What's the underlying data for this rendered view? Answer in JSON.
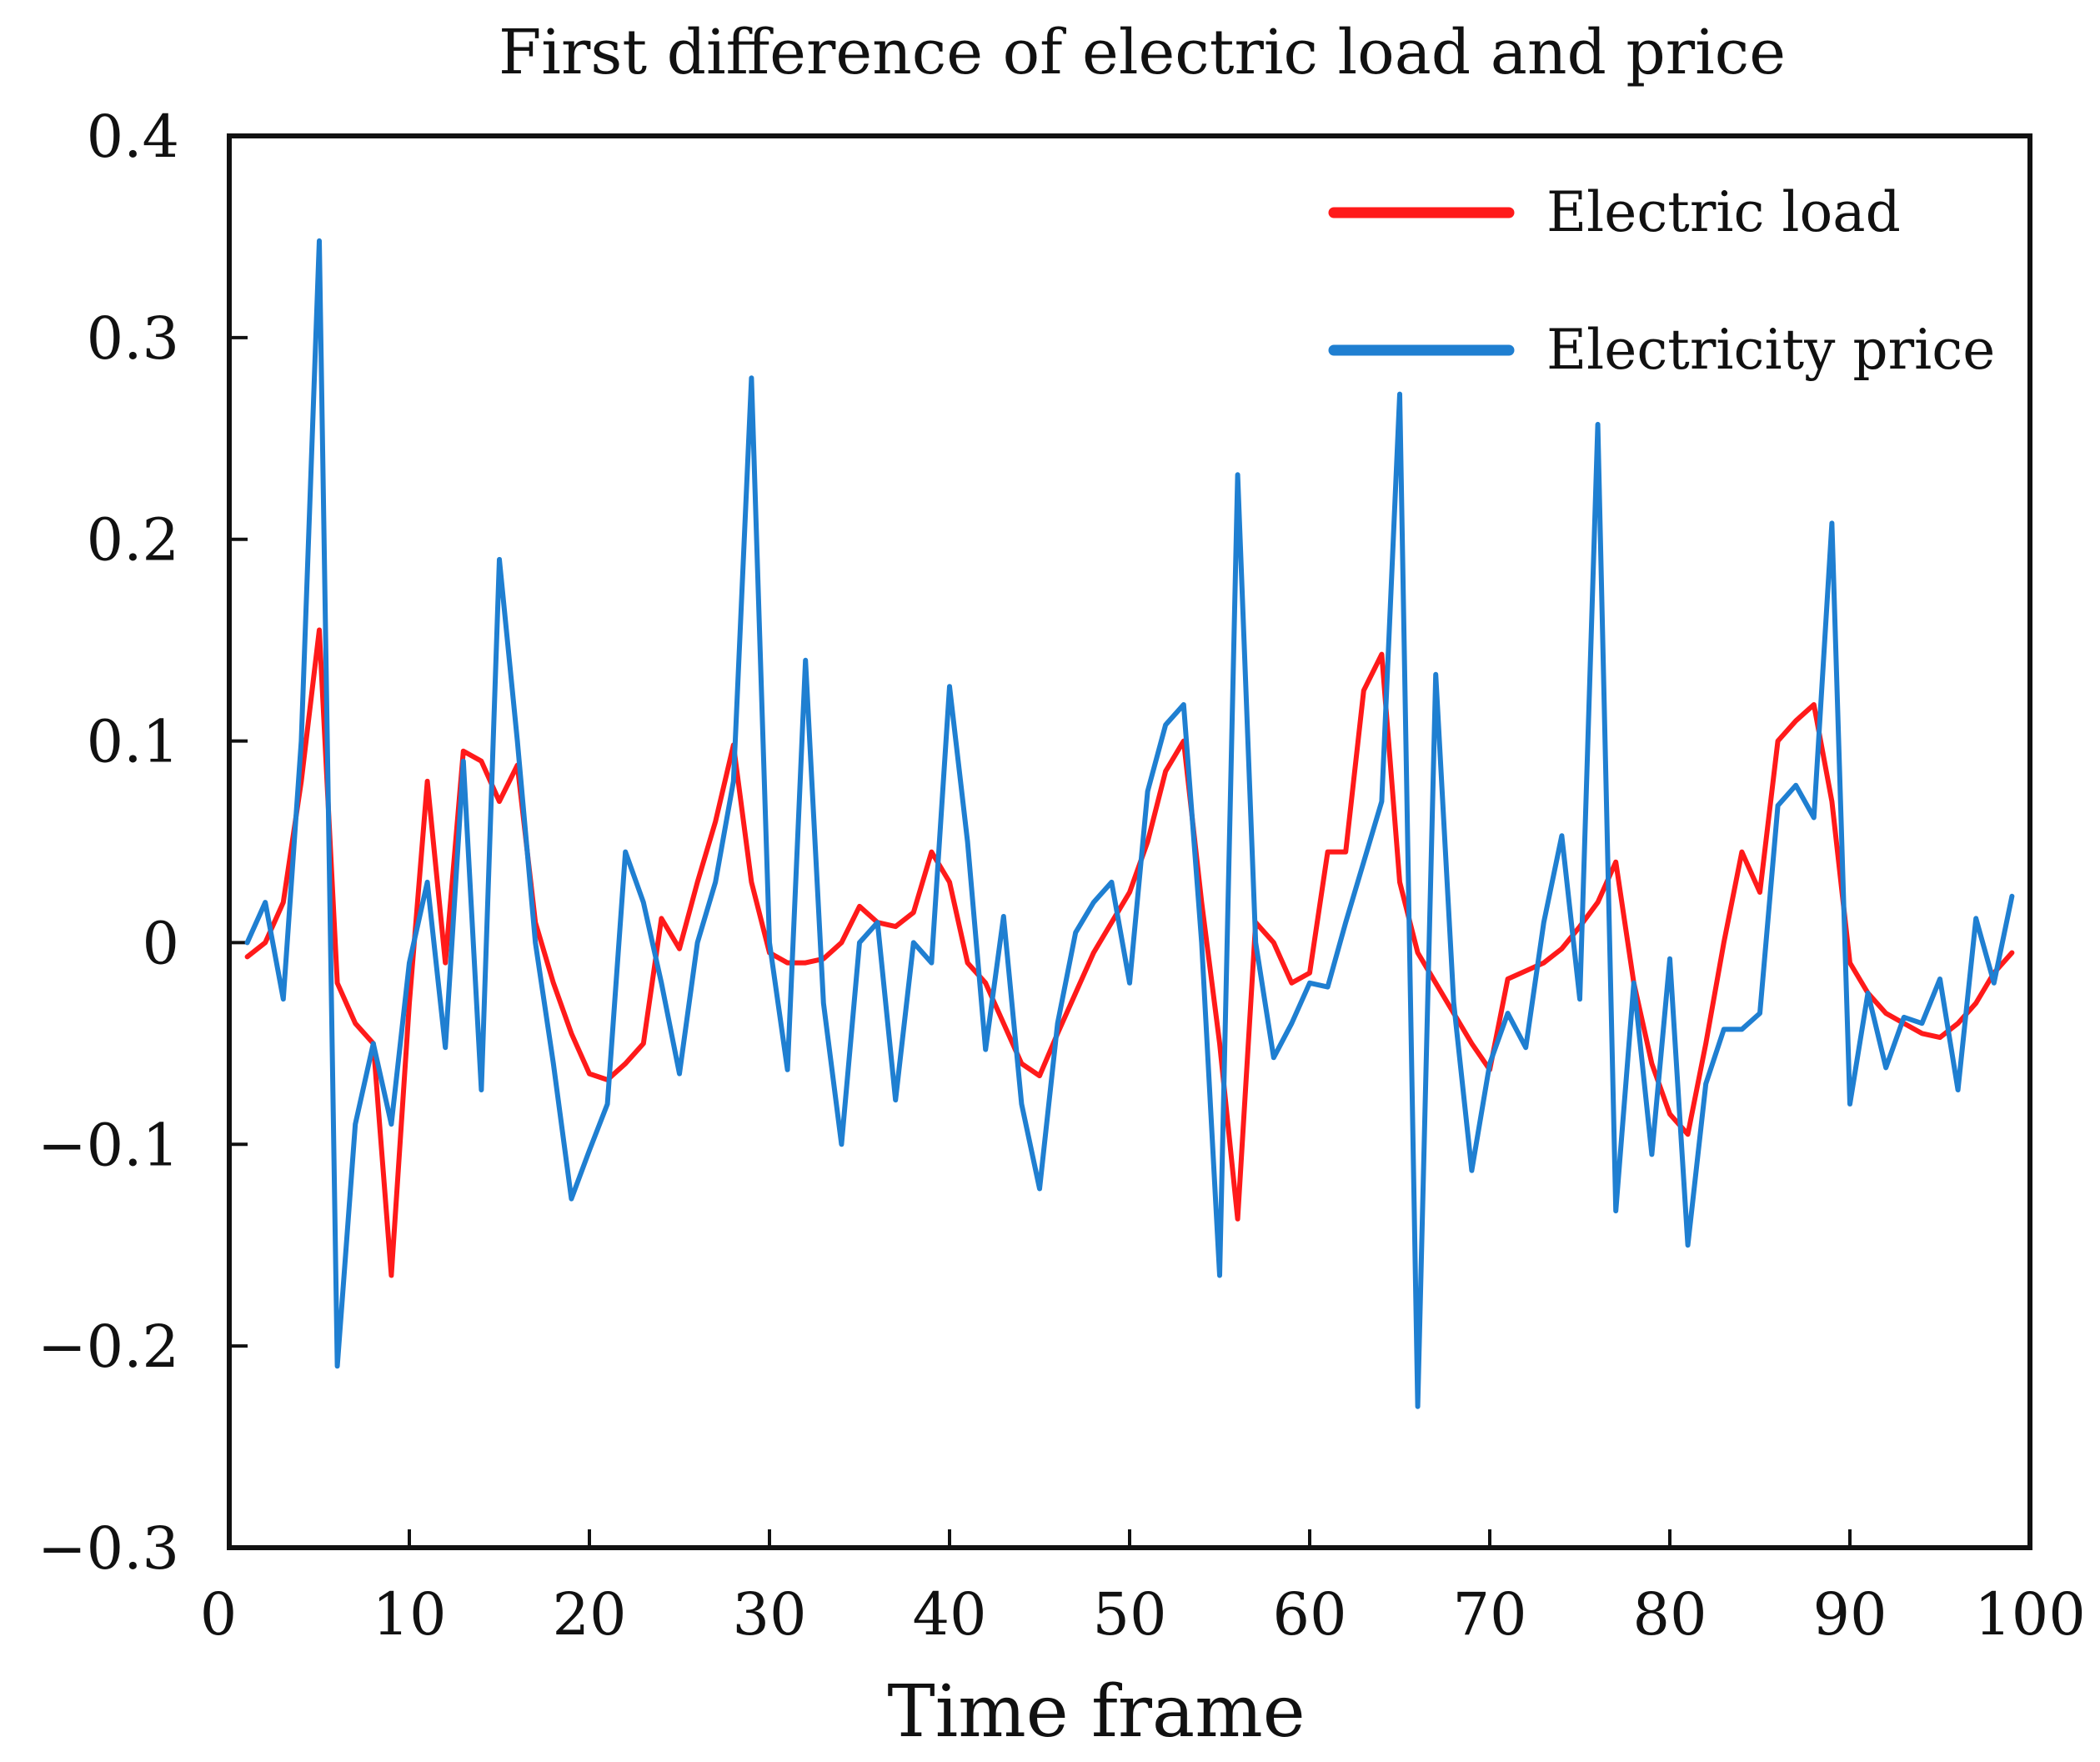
{
  "chart_data": {
    "type": "line",
    "title": "First difference of electric load and price",
    "xlabel": "Time frame",
    "ylabel": "",
    "xlim": [
      0,
      100
    ],
    "ylim": [
      -0.3,
      0.4
    ],
    "xticks": [
      0,
      10,
      20,
      30,
      40,
      50,
      60,
      70,
      80,
      90,
      100
    ],
    "xtick_labels": [
      "0",
      "10",
      "20",
      "30",
      "40",
      "50",
      "60",
      "70",
      "80",
      "90",
      "100"
    ],
    "yticks": [
      0.4,
      0.3,
      0.2,
      0.1,
      0,
      -0.1,
      -0.2,
      -0.3
    ],
    "ytick_labels": [
      "0.4",
      "0.3",
      "0.2",
      "0.1",
      "0",
      "−0.1",
      "−0.2",
      "−0.3"
    ],
    "grid": false,
    "legend_position": "top-right",
    "series": [
      {
        "name": "Electric load",
        "color": "#ff1a1a",
        "x": [
          1,
          2,
          3,
          4,
          5,
          6,
          7,
          8,
          9,
          10,
          11,
          12,
          13,
          14,
          15,
          16,
          17,
          18,
          19,
          20,
          21,
          22,
          23,
          24,
          25,
          26,
          27,
          28,
          29,
          30,
          31,
          32,
          33,
          34,
          35,
          36,
          37,
          38,
          39,
          40,
          41,
          42,
          43,
          44,
          45,
          46,
          47,
          48,
          49,
          50,
          51,
          52,
          53,
          54,
          55,
          56,
          57,
          58,
          59,
          60,
          61,
          62,
          63,
          64,
          65,
          66,
          67,
          68,
          69,
          70,
          71,
          72,
          73,
          74,
          75,
          76,
          77,
          78,
          79,
          80,
          81,
          82,
          83,
          84,
          85,
          86,
          87,
          88,
          89,
          90,
          91,
          92,
          93,
          94,
          95,
          96,
          97,
          98,
          99
        ],
        "values": [
          -0.007,
          0.0,
          0.02,
          0.08,
          0.155,
          -0.02,
          -0.04,
          -0.05,
          -0.165,
          -0.03,
          0.08,
          -0.01,
          0.095,
          0.09,
          0.07,
          0.088,
          0.01,
          -0.02,
          -0.045,
          -0.065,
          -0.068,
          -0.06,
          -0.05,
          0.012,
          -0.003,
          0.03,
          0.06,
          0.098,
          0.03,
          -0.005,
          -0.01,
          -0.01,
          -0.008,
          0.0,
          0.018,
          0.01,
          0.008,
          0.015,
          0.045,
          0.03,
          -0.01,
          -0.02,
          -0.04,
          -0.06,
          -0.066,
          -0.045,
          -0.025,
          -0.005,
          0.01,
          0.025,
          0.05,
          0.085,
          0.1,
          0.02,
          -0.05,
          -0.137,
          0.01,
          0.0,
          -0.02,
          -0.015,
          0.045,
          0.045,
          0.125,
          0.143,
          0.03,
          -0.005,
          -0.02,
          -0.035,
          -0.05,
          -0.063,
          -0.018,
          -0.014,
          -0.01,
          -0.003,
          0.008,
          0.02,
          0.04,
          -0.02,
          -0.06,
          -0.085,
          -0.095,
          -0.05,
          0.0,
          0.045,
          0.025,
          0.1,
          0.11,
          0.118,
          0.07,
          -0.01,
          -0.025,
          -0.035,
          -0.04,
          -0.045,
          -0.047,
          -0.04,
          -0.03,
          -0.015,
          -0.005
        ]
      },
      {
        "name": "Electricity price",
        "color": "#1f7fd1",
        "x": [
          1,
          2,
          3,
          4,
          5,
          6,
          7,
          8,
          9,
          10,
          11,
          12,
          13,
          14,
          15,
          16,
          17,
          18,
          19,
          20,
          21,
          22,
          23,
          24,
          25,
          26,
          27,
          28,
          29,
          30,
          31,
          32,
          33,
          34,
          35,
          36,
          37,
          38,
          39,
          40,
          41,
          42,
          43,
          44,
          45,
          46,
          47,
          48,
          49,
          50,
          51,
          52,
          53,
          54,
          55,
          56,
          57,
          58,
          59,
          60,
          61,
          62,
          63,
          64,
          65,
          66,
          67,
          68,
          69,
          70,
          71,
          72,
          73,
          74,
          75,
          76,
          77,
          78,
          79,
          80,
          81,
          82,
          83,
          84,
          85,
          86,
          87,
          88,
          89,
          90,
          91,
          92,
          93,
          94,
          95,
          96,
          97,
          98,
          99
        ],
        "values": [
          0.0,
          0.02,
          -0.028,
          0.1,
          0.348,
          -0.21,
          -0.09,
          -0.05,
          -0.09,
          -0.01,
          0.03,
          -0.052,
          0.09,
          -0.073,
          0.19,
          0.1,
          0.0,
          -0.06,
          -0.127,
          -0.103,
          -0.08,
          0.045,
          0.02,
          -0.02,
          -0.065,
          0.0,
          0.03,
          0.08,
          0.28,
          0.0,
          -0.063,
          0.14,
          -0.03,
          -0.1,
          0.0,
          0.01,
          -0.078,
          0.0,
          -0.01,
          0.127,
          0.05,
          -0.053,
          0.013,
          -0.08,
          -0.122,
          -0.04,
          0.005,
          0.02,
          0.03,
          -0.02,
          0.075,
          0.108,
          0.118,
          0.0,
          -0.165,
          0.232,
          0.0,
          -0.057,
          -0.04,
          -0.02,
          -0.022,
          0.01,
          0.04,
          0.07,
          0.272,
          -0.23,
          0.133,
          -0.03,
          -0.113,
          -0.06,
          -0.035,
          -0.052,
          0.01,
          0.053,
          -0.028,
          0.257,
          -0.133,
          -0.02,
          -0.105,
          -0.008,
          -0.15,
          -0.07,
          -0.043,
          -0.043,
          -0.035,
          0.068,
          0.078,
          0.062,
          0.208,
          -0.08,
          -0.025,
          -0.062,
          -0.037,
          -0.04,
          -0.018,
          -0.073,
          0.012,
          -0.02,
          0.023
        ]
      }
    ]
  }
}
